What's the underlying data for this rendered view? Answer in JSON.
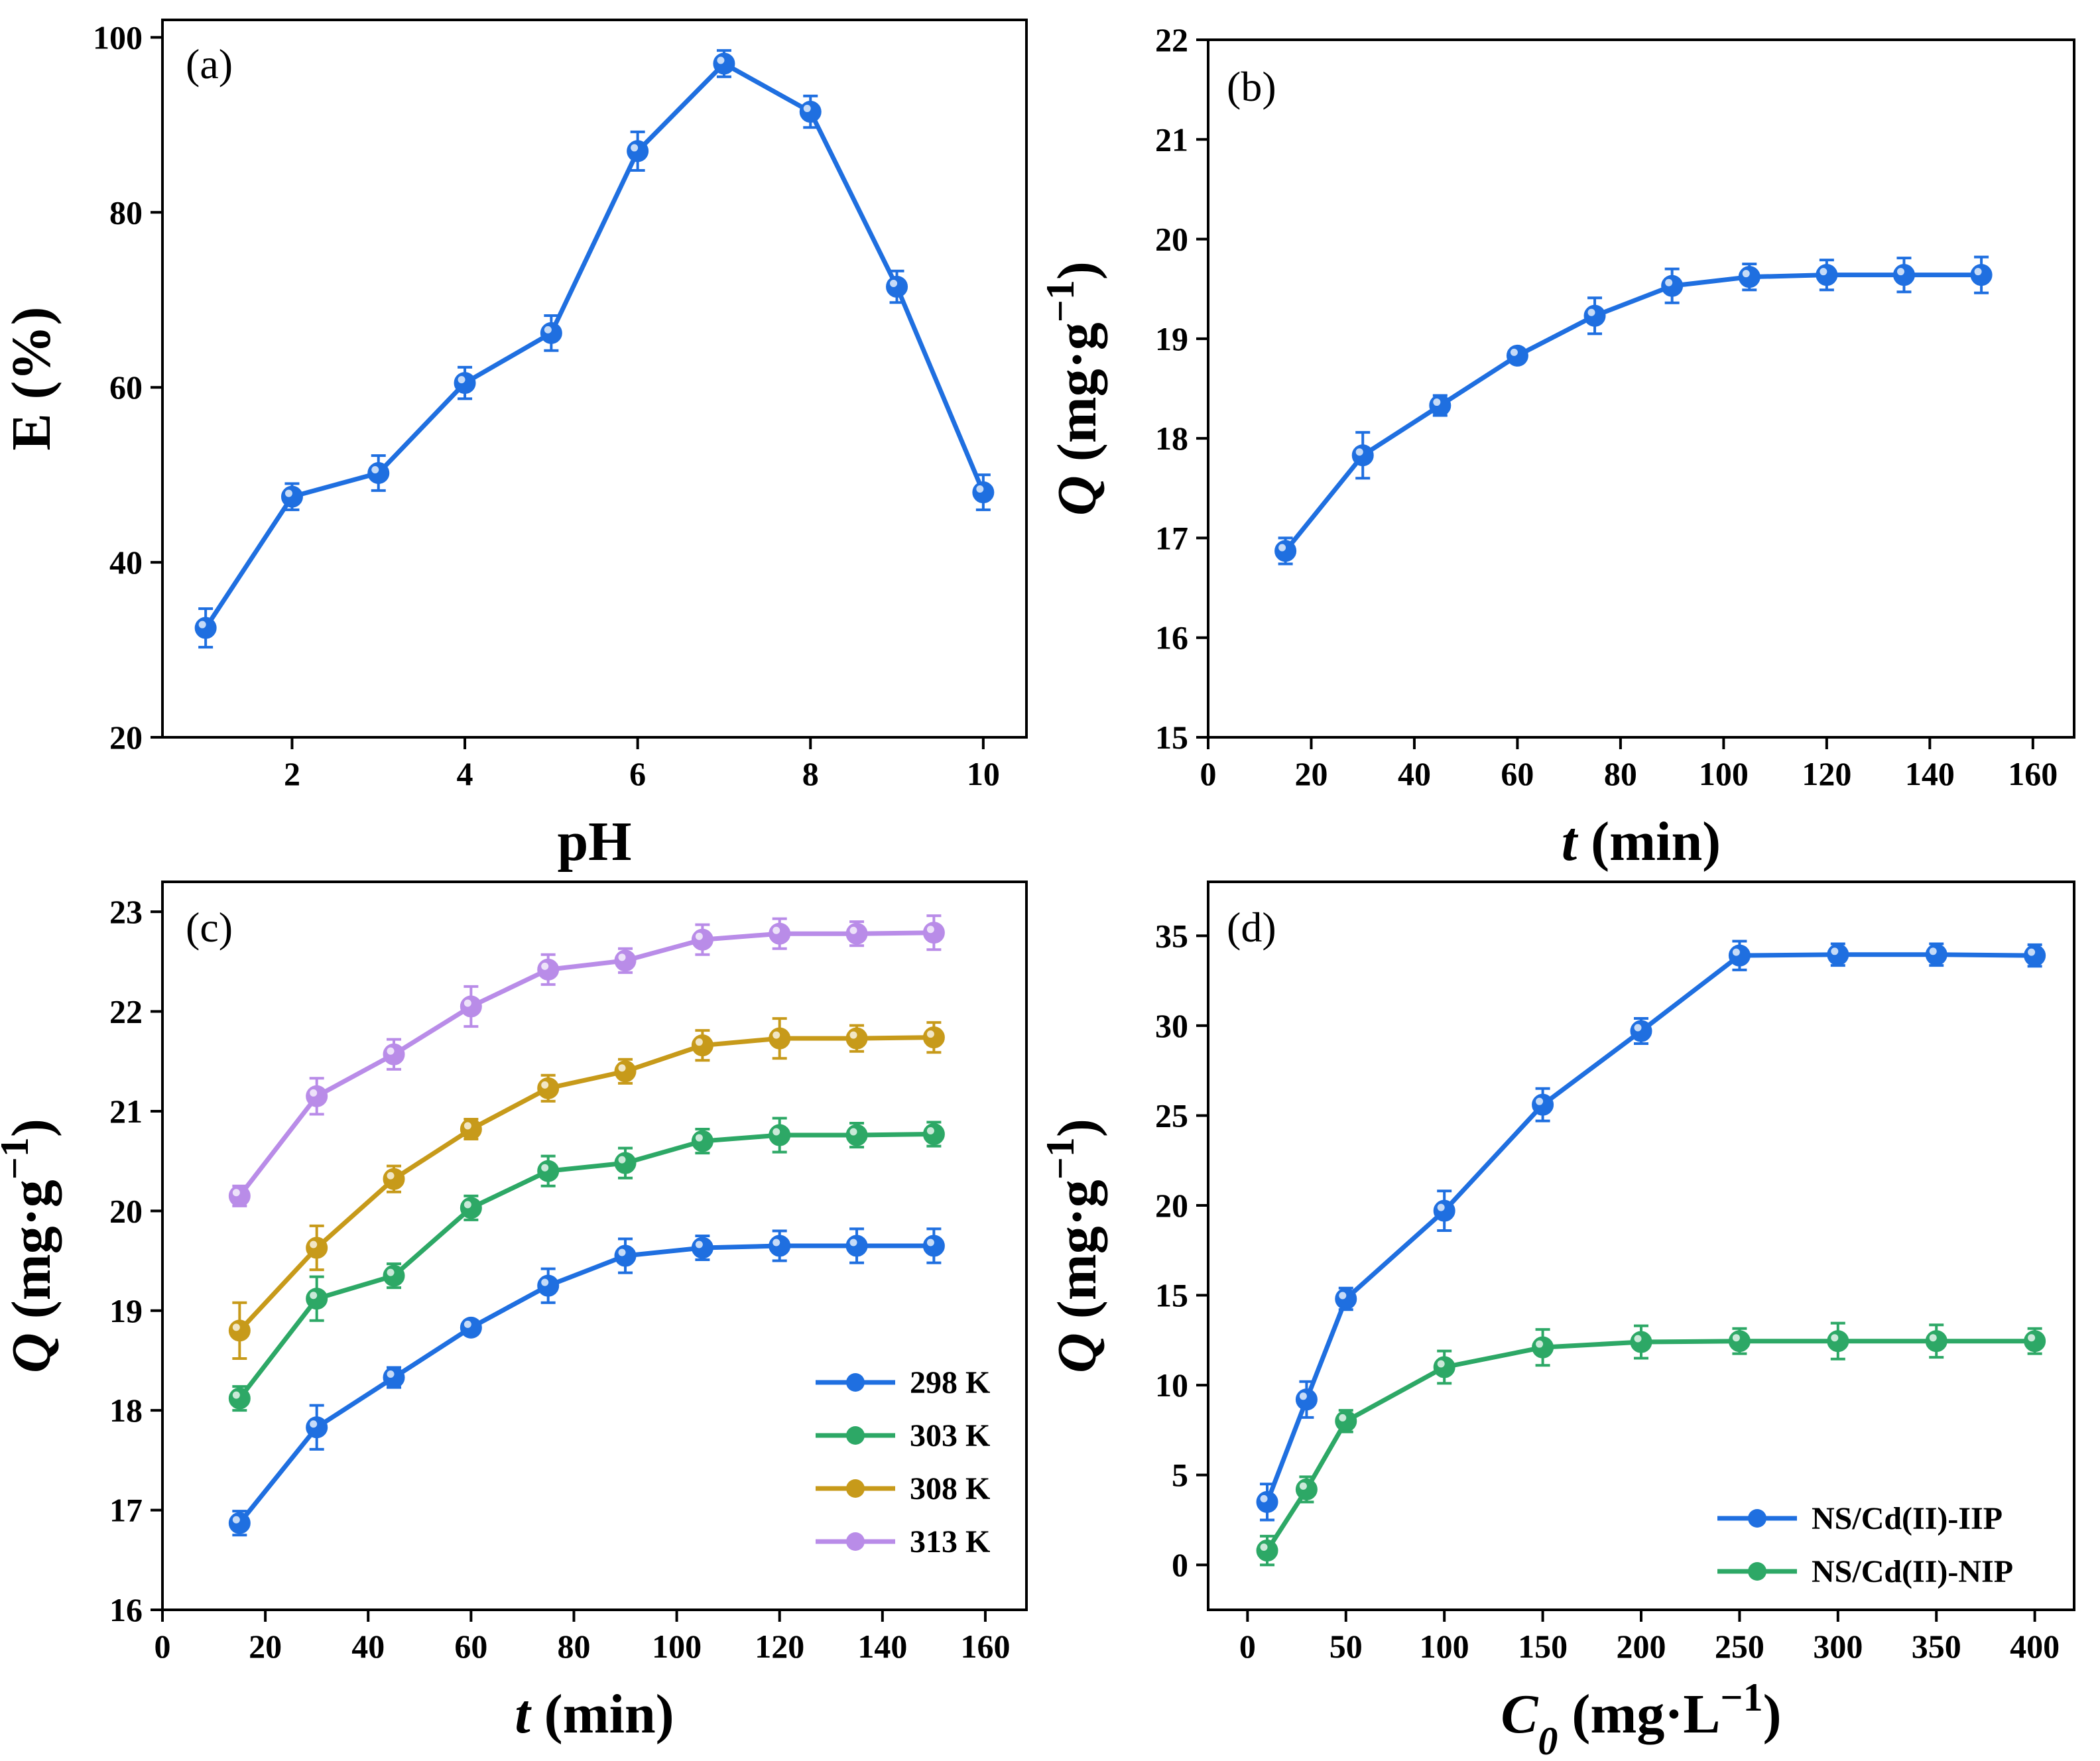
{
  "chart_data": [
    {
      "id": "a",
      "type": "line",
      "panel_label": "(a)",
      "xlabel_html": "pH",
      "ylabel_html": "E (%)",
      "xlim": [
        0.5,
        10.5
      ],
      "ylim": [
        20,
        102
      ],
      "xticks": [
        2,
        4,
        6,
        8,
        10
      ],
      "yticks": [
        20,
        40,
        60,
        80,
        100
      ],
      "series": [
        {
          "name": "E",
          "color": "#1F6FE0",
          "x": [
            1,
            2,
            3,
            4,
            5,
            6,
            7,
            8,
            9,
            10
          ],
          "y": [
            32.5,
            47.5,
            50.2,
            60.5,
            66.2,
            87.0,
            97.0,
            91.5,
            71.5,
            48.0
          ],
          "err": [
            2.2,
            1.5,
            2.0,
            1.8,
            2.0,
            2.2,
            1.5,
            1.8,
            1.8,
            2.0
          ]
        }
      ]
    },
    {
      "id": "b",
      "type": "line",
      "panel_label": "(b)",
      "xlabel_html": "<tspan class='it'>t</tspan> (min)",
      "ylabel_html": "<tspan class='it'>Q</tspan> (mg·g<tspan baseline-shift='super' font-size='60'>−1</tspan>)",
      "xlim": [
        0,
        168
      ],
      "ylim": [
        15,
        22
      ],
      "xticks": [
        0,
        20,
        40,
        60,
        80,
        100,
        120,
        140,
        160
      ],
      "yticks": [
        15,
        16,
        17,
        18,
        19,
        20,
        21,
        22
      ],
      "series": [
        {
          "name": "Q",
          "color": "#1F6FE0",
          "x": [
            15,
            30,
            45,
            60,
            75,
            90,
            105,
            120,
            135,
            150
          ],
          "y": [
            16.87,
            17.83,
            18.33,
            18.83,
            19.23,
            19.53,
            19.62,
            19.64,
            19.64,
            19.64
          ],
          "err": [
            0.13,
            0.23,
            0.1,
            0.07,
            0.18,
            0.17,
            0.13,
            0.15,
            0.17,
            0.18
          ]
        }
      ]
    },
    {
      "id": "c",
      "type": "line",
      "panel_label": "(c)",
      "xlabel_html": "<tspan class='it'>t</tspan> (min)",
      "ylabel_html": "<tspan class='it'>Q</tspan> (mg·g<tspan baseline-shift='super' font-size='60'>−1</tspan>)",
      "xlim": [
        0,
        168
      ],
      "ylim": [
        16,
        23.3
      ],
      "xticks": [
        0,
        20,
        40,
        60,
        80,
        100,
        120,
        140,
        160
      ],
      "yticks": [
        16,
        17,
        18,
        19,
        20,
        21,
        22,
        23
      ],
      "legend": "bottom-right",
      "series": [
        {
          "name": "298 K",
          "color": "#1F6FE0",
          "x": [
            15,
            30,
            45,
            60,
            75,
            90,
            105,
            120,
            135,
            150
          ],
          "y": [
            16.87,
            17.83,
            18.33,
            18.83,
            19.25,
            19.55,
            19.63,
            19.65,
            19.65,
            19.65
          ],
          "err": [
            0.12,
            0.22,
            0.1,
            0.07,
            0.17,
            0.17,
            0.12,
            0.15,
            0.17,
            0.17
          ]
        },
        {
          "name": "303 K",
          "color": "#2DA866",
          "x": [
            15,
            30,
            45,
            60,
            75,
            90,
            105,
            120,
            135,
            150
          ],
          "y": [
            18.12,
            19.12,
            19.35,
            20.03,
            20.4,
            20.48,
            20.7,
            20.76,
            20.76,
            20.77
          ],
          "err": [
            0.12,
            0.22,
            0.12,
            0.12,
            0.15,
            0.15,
            0.12,
            0.17,
            0.12,
            0.12
          ]
        },
        {
          "name": "308 K",
          "color": "#C79A1A",
          "x": [
            15,
            30,
            45,
            60,
            75,
            90,
            105,
            120,
            135,
            150
          ],
          "y": [
            18.8,
            19.63,
            20.32,
            20.82,
            21.23,
            21.4,
            21.66,
            21.73,
            21.73,
            21.74
          ],
          "err": [
            0.28,
            0.22,
            0.13,
            0.1,
            0.13,
            0.12,
            0.15,
            0.2,
            0.13,
            0.15
          ]
        },
        {
          "name": "313 K",
          "color": "#B98CE8",
          "x": [
            15,
            30,
            45,
            60,
            75,
            90,
            105,
            120,
            135,
            150
          ],
          "y": [
            20.15,
            21.15,
            21.57,
            22.05,
            22.42,
            22.51,
            22.72,
            22.78,
            22.78,
            22.79
          ],
          "err": [
            0.1,
            0.18,
            0.15,
            0.2,
            0.15,
            0.12,
            0.15,
            0.15,
            0.12,
            0.17
          ]
        }
      ]
    },
    {
      "id": "d",
      "type": "line",
      "panel_label": "(d)",
      "xlabel_html": "<tspan class='it'>C</tspan><tspan class='it' baseline-shift='sub' font-size='60'>0</tspan> (mg·L<tspan baseline-shift='super' font-size='60'>−1</tspan>)",
      "ylabel_html": "<tspan class='it'>Q</tspan> (mg·g<tspan baseline-shift='super' font-size='60'>−1</tspan>)",
      "xlim": [
        -20,
        420
      ],
      "ylim": [
        -2.5,
        38
      ],
      "xticks": [
        0,
        50,
        100,
        150,
        200,
        250,
        300,
        350,
        400
      ],
      "yticks": [
        0,
        5,
        10,
        15,
        20,
        25,
        30,
        35
      ],
      "legend": "bottom-right",
      "series": [
        {
          "name": "NS/Cd(II)-IIP",
          "color": "#1F6FE0",
          "x": [
            10,
            30,
            50,
            100,
            150,
            200,
            250,
            300,
            350,
            400
          ],
          "y": [
            3.5,
            9.2,
            14.8,
            19.7,
            25.6,
            29.7,
            33.9,
            33.95,
            33.95,
            33.9
          ],
          "err": [
            1.0,
            1.0,
            0.6,
            1.1,
            0.9,
            0.7,
            0.8,
            0.6,
            0.6,
            0.6
          ]
        },
        {
          "name": "NS/Cd(II)-NIP",
          "color": "#2DA866",
          "x": [
            10,
            30,
            50,
            100,
            150,
            200,
            250,
            300,
            350,
            400
          ],
          "y": [
            0.8,
            4.2,
            8.0,
            11.0,
            12.1,
            12.4,
            12.45,
            12.45,
            12.45,
            12.45
          ],
          "err": [
            0.8,
            0.7,
            0.6,
            0.9,
            1.0,
            0.9,
            0.7,
            1.0,
            0.9,
            0.7
          ]
        }
      ]
    }
  ]
}
